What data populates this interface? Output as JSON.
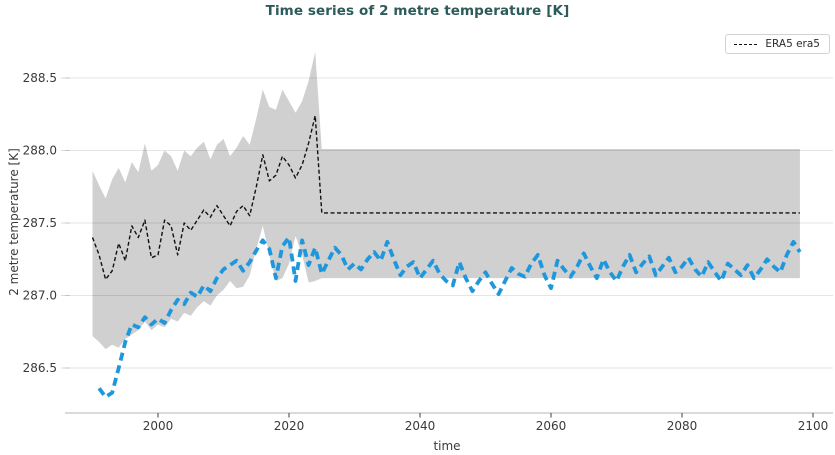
{
  "chart": {
    "title": "Time series of 2 metre temperature [K]",
    "xlabel": "time",
    "ylabel": "2 metre temperature [K]",
    "legend": {
      "entries": [
        {
          "label": "ERA5 era5",
          "line_style": "dashed",
          "color": "#111111"
        }
      ],
      "position": "upper right"
    }
  },
  "chart_data": {
    "type": "line",
    "title": "Time series of 2 metre temperature [K]",
    "xlabel": "time",
    "ylabel": "2 metre temperature [K]",
    "xlim": [
      1988.5,
      2101.5
    ],
    "ylim": [
      286.2,
      288.8
    ],
    "x_ticks": [
      2000,
      2020,
      2040,
      2060,
      2080,
      2100
    ],
    "y_ticks": [
      288.5,
      288.0,
      287.5,
      287.0,
      286.5
    ],
    "grid": "horizontal",
    "background": "#ffffff",
    "grid_color": "#e3e3e3",
    "tick_label_color": "#3a3a3a",
    "title_color": "#2d5a5a",
    "band": {
      "description": "gray uncertainty envelope",
      "color": "#d0d0d0",
      "start_year": 1990,
      "top": [
        287.86,
        287.76,
        287.67,
        287.8,
        287.88,
        287.78,
        287.92,
        287.85,
        288.05,
        287.86,
        287.9,
        288.0,
        287.96,
        287.86,
        288.0,
        287.96,
        288.02,
        288.06,
        287.94,
        288.04,
        288.08,
        287.96,
        288.02,
        288.1,
        288.04,
        288.22,
        288.42,
        288.3,
        288.28,
        288.42,
        288.34,
        288.26,
        288.34,
        288.48,
        288.68
      ],
      "bottom": [
        286.72,
        286.68,
        286.63,
        286.66,
        286.64,
        286.7,
        286.73,
        286.76,
        286.82,
        286.76,
        286.8,
        286.78,
        286.84,
        286.82,
        286.88,
        286.86,
        286.92,
        286.96,
        286.93,
        287.0,
        287.04,
        287.1,
        287.05,
        287.06,
        287.14,
        287.32,
        287.48,
        287.28,
        287.1,
        287.12,
        287.22,
        287.41,
        287.28,
        287.09,
        287.1
      ],
      "flat_segment": {
        "from_year": 2025,
        "to_year": 2098,
        "top": 288.01,
        "bottom": 287.12
      }
    },
    "series": [
      {
        "id": "era5",
        "legend_label": "ERA5 era5",
        "color": "#111111",
        "line_style": "dashed",
        "line_width": 1.4,
        "dash": [
          4,
          2.5
        ],
        "start_year": 1990,
        "values": [
          287.4,
          287.28,
          287.11,
          287.17,
          287.36,
          287.24,
          287.48,
          287.4,
          287.52,
          287.26,
          287.28,
          287.52,
          287.48,
          287.28,
          287.5,
          287.45,
          287.52,
          287.59,
          287.54,
          287.62,
          287.55,
          287.48,
          287.58,
          287.62,
          287.55,
          287.75,
          287.97,
          287.79,
          287.83,
          287.96,
          287.9,
          287.81,
          287.9,
          288.05,
          288.24
        ],
        "flat_segment": {
          "from_year": 2025,
          "to_year": 2098,
          "value": 287.57
        }
      },
      {
        "id": "model",
        "legend_label": "",
        "color": "#1f97dd",
        "line_style": "dashed",
        "line_width": 3.8,
        "dash": [
          8,
          5
        ],
        "start_year": 1991,
        "values": [
          286.36,
          286.3,
          286.33,
          286.5,
          286.68,
          286.8,
          286.78,
          286.85,
          286.8,
          286.84,
          286.81,
          286.9,
          286.97,
          286.94,
          287.02,
          286.99,
          287.07,
          287.03,
          287.12,
          287.18,
          287.21,
          287.24,
          287.17,
          287.23,
          287.31,
          287.38,
          287.32,
          287.12,
          287.34,
          287.4,
          287.1,
          287.38,
          287.21,
          287.33,
          287.15,
          287.24,
          287.33,
          287.28,
          287.18,
          287.22,
          287.18,
          287.25,
          287.3,
          287.24,
          287.37,
          287.25,
          287.14,
          287.2,
          287.23,
          287.12,
          287.18,
          287.24,
          287.15,
          287.1,
          287.07,
          287.23,
          287.12,
          287.03,
          287.1,
          287.16,
          287.08,
          287.01,
          287.1,
          287.19,
          287.15,
          287.13,
          287.22,
          287.28,
          287.14,
          287.05,
          287.24,
          287.18,
          287.13,
          287.2,
          287.29,
          287.2,
          287.12,
          287.25,
          287.16,
          287.1,
          287.2,
          287.28,
          287.16,
          287.22,
          287.27,
          287.14,
          287.2,
          287.26,
          287.16,
          287.2,
          287.26,
          287.18,
          287.13,
          287.23,
          287.16,
          287.1,
          287.22,
          287.18,
          287.14,
          287.21,
          287.12,
          287.18,
          287.25,
          287.2,
          287.16,
          287.28,
          287.37,
          287.3
        ]
      }
    ]
  }
}
